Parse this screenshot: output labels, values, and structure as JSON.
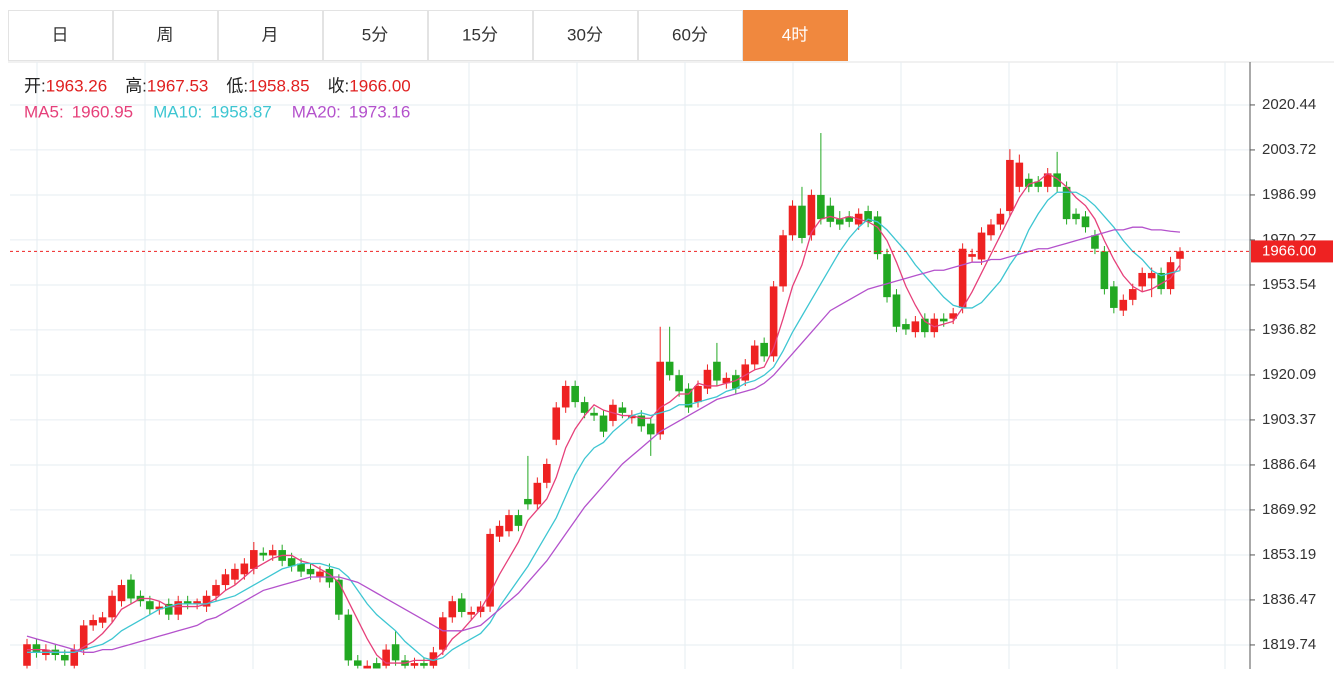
{
  "tabs": [
    "日",
    "周",
    "月",
    "5分",
    "15分",
    "30分",
    "60分",
    "4时"
  ],
  "active_tab": "4时",
  "info": [
    {
      "label": "开:",
      "value": "1963.26"
    },
    {
      "label": "高:",
      "value": "1967.53"
    },
    {
      "label": "低:",
      "value": "1958.85"
    },
    {
      "label": "收:",
      "value": "1966.00"
    }
  ],
  "chart_data": {
    "type": "candlestick",
    "open": [
      1812,
      1820,
      1816,
      1818,
      1816,
      1812,
      1818,
      1827,
      1828,
      1830,
      1836,
      1844,
      1838,
      1836,
      1833,
      1835,
      1831,
      1836,
      1835,
      1834,
      1838,
      1842,
      1844,
      1846,
      1848,
      1854,
      1853,
      1855,
      1852,
      1850,
      1848,
      1845,
      1848,
      1844,
      1831,
      1814,
      1811,
      1813,
      1812,
      1820,
      1814,
      1812,
      1813,
      1812,
      1818,
      1830,
      1837,
      1831,
      1832,
      1834,
      1860,
      1862,
      1868,
      1874,
      1872,
      1880,
      1896,
      1908,
      1916,
      1910,
      1906,
      1905,
      1903,
      1908,
      1904,
      1905,
      1902,
      1898,
      1925,
      1920,
      1915,
      1910,
      1915,
      1925,
      1917,
      1920,
      1918,
      1924,
      1932,
      1927,
      1953,
      1972,
      1983,
      1972,
      1987,
      1983,
      1978,
      1979,
      1976,
      1981,
      1979,
      1965,
      1950,
      1939,
      1936,
      1941,
      1936,
      1941,
      1941,
      1945,
      1964,
      1963,
      1972,
      1976,
      1981,
      1990,
      1993,
      1992,
      1990,
      1995,
      1990,
      1980,
      1979,
      1972,
      1966,
      1953,
      1944,
      1948,
      1953,
      1956,
      1958,
      1952,
      1963.26
    ],
    "high": [
      1822,
      1822,
      1820,
      1820,
      1818,
      1820,
      1829,
      1831,
      1832,
      1840,
      1844,
      1846,
      1840,
      1838,
      1836,
      1837,
      1838,
      1838,
      1837,
      1840,
      1844,
      1848,
      1850,
      1852,
      1858,
      1856,
      1857,
      1857,
      1854,
      1852,
      1850,
      1849,
      1850,
      1846,
      1833,
      1816,
      1814,
      1815,
      1820,
      1825,
      1816,
      1815,
      1815,
      1819,
      1832,
      1838,
      1839,
      1834,
      1836,
      1863,
      1866,
      1870,
      1870,
      1890,
      1882,
      1889,
      1910,
      1918,
      1918,
      1912,
      1908,
      1907,
      1911,
      1910,
      1907,
      1907,
      1904,
      1938,
      1938,
      1922,
      1917,
      1918,
      1924,
      1932,
      1921,
      1922,
      1926,
      1933,
      1934,
      1955,
      1974,
      1985,
      1990,
      1989,
      2010,
      1986,
      1981,
      1981,
      1982,
      1983,
      1981,
      1967,
      1952,
      1941,
      1942,
      1943,
      1943,
      1943,
      1945,
      1969,
      1967,
      1975,
      1978,
      1982,
      2004,
      2002,
      1995,
      1994,
      1997,
      2003,
      1992,
      1982,
      1981,
      1974,
      1968,
      1955,
      1950,
      1954,
      1960,
      1960,
      1960,
      1964,
      1967.53
    ],
    "low": [
      1811,
      1815,
      1814,
      1814,
      1812,
      1811,
      1816,
      1825,
      1826,
      1828,
      1834,
      1835,
      1834,
      1831,
      1831,
      1829,
      1829,
      1833,
      1833,
      1832,
      1836,
      1840,
      1842,
      1844,
      1846,
      1851,
      1851,
      1849,
      1847,
      1845,
      1844,
      1843,
      1841,
      1829,
      1812,
      1811,
      1811,
      1811,
      1811,
      1812,
      1811,
      1811,
      1811,
      1811,
      1816,
      1828,
      1830,
      1829,
      1830,
      1832,
      1858,
      1860,
      1862,
      1870,
      1870,
      1878,
      1894,
      1906,
      1908,
      1904,
      1903,
      1897,
      1901,
      1904,
      1902,
      1899,
      1890,
      1896,
      1918,
      1912,
      1906,
      1908,
      1913,
      1916,
      1915,
      1913,
      1916,
      1922,
      1925,
      1925,
      1951,
      1970,
      1969,
      1970,
      1976,
      1975,
      1974,
      1975,
      1974,
      1975,
      1963,
      1947,
      1936,
      1935,
      1934,
      1934,
      1934,
      1938,
      1939,
      1943,
      1962,
      1961,
      1970,
      1974,
      1979,
      1988,
      1988,
      1988,
      1988,
      1988,
      1976,
      1976,
      1973,
      1965,
      1950,
      1943,
      1942,
      1946,
      1951,
      1949,
      1950,
      1950,
      1958.85
    ],
    "close": [
      1820,
      1817,
      1818,
      1816,
      1814,
      1818,
      1827,
      1829,
      1830,
      1838,
      1842,
      1837,
      1836,
      1833,
      1834,
      1831,
      1836,
      1835,
      1836,
      1838,
      1842,
      1846,
      1848,
      1850,
      1855,
      1853,
      1855,
      1851,
      1849,
      1847,
      1846,
      1847,
      1843,
      1831,
      1814,
      1812,
      1812,
      1811,
      1818,
      1814,
      1812,
      1813,
      1812,
      1817,
      1830,
      1836,
      1832,
      1832,
      1834,
      1861,
      1864,
      1868,
      1864,
      1872,
      1880,
      1887,
      1908,
      1916,
      1910,
      1906,
      1905,
      1899,
      1909,
      1906,
      1905,
      1901,
      1898,
      1925,
      1920,
      1914,
      1908,
      1916,
      1922,
      1918,
      1919,
      1915,
      1924,
      1931,
      1927,
      1953,
      1972,
      1983,
      1971,
      1987,
      1978,
      1977,
      1976,
      1977,
      1980,
      1977,
      1965,
      1949,
      1938,
      1937,
      1940,
      1936,
      1941,
      1940,
      1943,
      1967,
      1965,
      1973,
      1976,
      1980,
      2000,
      1999,
      1990,
      1990,
      1995,
      1990,
      1978,
      1978,
      1975,
      1967,
      1952,
      1945,
      1948,
      1952,
      1958,
      1958,
      1952,
      1962,
      1966
    ],
    "up_color": "#ee2222",
    "down_color": "#22a822",
    "series": [
      {
        "name": "MA5:",
        "legend_value": "1960.95",
        "color": "#e6407a",
        "values": [
          1818,
          1818,
          1818,
          1817,
          1817,
          1817,
          1819,
          1821,
          1824,
          1828,
          1833,
          1835,
          1837,
          1837,
          1836,
          1834,
          1834,
          1834,
          1834,
          1835,
          1837,
          1840,
          1842,
          1845,
          1848,
          1850,
          1852,
          1853,
          1853,
          1851,
          1850,
          1848,
          1846,
          1843,
          1836,
          1829,
          1822,
          1816,
          1813,
          1813,
          1813,
          1814,
          1814,
          1814,
          1817,
          1822,
          1825,
          1829,
          1833,
          1839,
          1846,
          1852,
          1858,
          1866,
          1870,
          1874,
          1882,
          1893,
          1900,
          1905,
          1909,
          1907,
          1906,
          1905,
          1905,
          1904,
          1904,
          1908,
          1910,
          1913,
          1913,
          1917,
          1916,
          1916,
          1917,
          1918,
          1920,
          1922,
          1923,
          1930,
          1941,
          1953,
          1961,
          1973,
          1978,
          1979,
          1978,
          1979,
          1978,
          1977,
          1975,
          1970,
          1962,
          1953,
          1946,
          1940,
          1938,
          1939,
          1940,
          1945,
          1951,
          1958,
          1965,
          1972,
          1979,
          1986,
          1991,
          1992,
          1995,
          1993,
          1990,
          1986,
          1983,
          1978,
          1970,
          1963,
          1957,
          1953,
          1951,
          1952,
          1954,
          1956,
          1960.95
        ]
      },
      {
        "name": "MA10:",
        "legend_value": "1958.87",
        "color": "#3ec6d2",
        "values": [
          1817,
          1817,
          1817,
          1817,
          1817,
          1817,
          1818,
          1819,
          1820,
          1822,
          1825,
          1827,
          1829,
          1831,
          1833,
          1834,
          1835,
          1835,
          1835,
          1835,
          1836,
          1837,
          1838,
          1840,
          1842,
          1844,
          1846,
          1848,
          1849,
          1850,
          1850,
          1850,
          1849,
          1848,
          1845,
          1840,
          1835,
          1831,
          1828,
          1825,
          1821,
          1818,
          1815,
          1814,
          1815,
          1818,
          1820,
          1822,
          1824,
          1828,
          1834,
          1839,
          1844,
          1849,
          1855,
          1861,
          1867,
          1875,
          1883,
          1889,
          1893,
          1895,
          1899,
          1902,
          1905,
          1906,
          1905,
          1906,
          1907,
          1909,
          1909,
          1910,
          1911,
          1912,
          1914,
          1915,
          1917,
          1918,
          1920,
          1923,
          1929,
          1936,
          1942,
          1948,
          1954,
          1960,
          1966,
          1971,
          1975,
          1978,
          1977,
          1974,
          1970,
          1966,
          1961,
          1957,
          1953,
          1949,
          1946,
          1945,
          1945,
          1947,
          1951,
          1955,
          1961,
          1966,
          1974,
          1980,
          1985,
          1988,
          1988,
          1988,
          1986,
          1983,
          1979,
          1975,
          1970,
          1966,
          1963,
          1959,
          1957,
          1958,
          1958.87
        ]
      },
      {
        "name": "MA20:",
        "legend_value": "1973.16",
        "color": "#b452cc",
        "values": [
          1823,
          1822,
          1821,
          1820,
          1819,
          1818,
          1817,
          1817,
          1818,
          1818,
          1819,
          1820,
          1821,
          1822,
          1823,
          1824,
          1825,
          1826,
          1827,
          1829,
          1830,
          1832,
          1834,
          1836,
          1838,
          1840,
          1841,
          1842,
          1843,
          1844,
          1845,
          1845,
          1845,
          1845,
          1844,
          1843,
          1841,
          1839,
          1837,
          1835,
          1833,
          1831,
          1829,
          1827,
          1825,
          1825,
          1825,
          1826,
          1827,
          1830,
          1833,
          1836,
          1839,
          1843,
          1847,
          1851,
          1856,
          1861,
          1866,
          1871,
          1875,
          1879,
          1883,
          1887,
          1890,
          1893,
          1896,
          1899,
          1901,
          1903,
          1905,
          1907,
          1909,
          1911,
          1912,
          1913,
          1914,
          1915,
          1917,
          1920,
          1924,
          1928,
          1932,
          1936,
          1940,
          1944,
          1946,
          1948,
          1950,
          1952,
          1953,
          1954,
          1955,
          1956,
          1957,
          1958,
          1959,
          1959,
          1960,
          1961,
          1962,
          1962,
          1963,
          1963,
          1964,
          1965,
          1966,
          1967,
          1967,
          1968,
          1969,
          1970,
          1971,
          1972,
          1973,
          1974,
          1974,
          1975,
          1975,
          1974,
          1974,
          1973.5,
          1973.16
        ]
      }
    ],
    "ylim": [
      1810.8,
      2036.4
    ],
    "yticks": [
      2020.44,
      2003.72,
      1986.99,
      1970.27,
      1953.54,
      1936.82,
      1920.09,
      1903.37,
      1886.64,
      1869.92,
      1853.19,
      1836.47,
      1819.74
    ],
    "grid": true,
    "last_price": {
      "value": 1966,
      "label": "1966.00"
    },
    "price_line_color": "#ee2222"
  }
}
